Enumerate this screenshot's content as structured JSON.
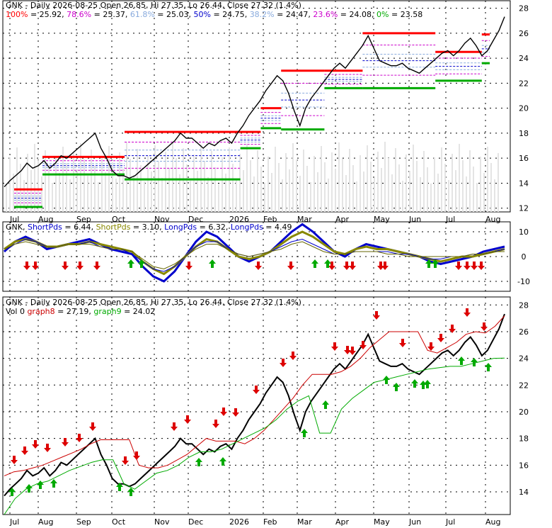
{
  "panel1": {
    "title": "GNK - Daily 2026-08-25 Open 26.85, Hi 27.35, Lo 26.44, Close 27.32 (1.4%)",
    "fib_levels": [
      {
        "label": "100%",
        "value": "25.92",
        "color": "#ff0000"
      },
      {
        "label": "78.6%",
        "value": "25.37",
        "color": "#cc00cc"
      },
      {
        "label": "61.8%",
        "value": "25.03",
        "color": "#88aadd"
      },
      {
        "label": "50%",
        "value": "24.75",
        "color": "#0000cc"
      },
      {
        "label": "38.2%",
        "value": "24.47",
        "color": "#88aadd"
      },
      {
        "label": "23.6%",
        "value": "24.08",
        "color": "#cc00cc"
      },
      {
        "label": "0%",
        "value": "23.58",
        "color": "#00aa00"
      }
    ]
  },
  "panel2": {
    "legend": [
      {
        "label": "GNK",
        "value": "",
        "color": "#000000"
      },
      {
        "label": "ShortPds",
        "value": "6.44",
        "color": "#0000cc"
      },
      {
        "label": "ShortPds",
        "value": "3.10",
        "color": "#888800"
      },
      {
        "label": "LongPds",
        "value": "6.32",
        "color": "#0000cc"
      },
      {
        "label": "LongPds",
        "value": "4.49",
        "color": "#0000cc"
      }
    ]
  },
  "panel3": {
    "title": "GNK - Daily 2026-08-25 Open 26.85, Hi 27.35, Lo 26.44, Close 27.32 (1.4%)",
    "legend": [
      {
        "label": "Vol 0",
        "value": "",
        "color": "#000000"
      },
      {
        "label": "graph8",
        "value": "27.19",
        "color": "#cc0000"
      },
      {
        "label": "graph9",
        "value": "24.02",
        "color": "#00aa00"
      }
    ]
  },
  "chart_data": [
    {
      "type": "line",
      "title": "GNK - Daily 2026-08-25 Open 26.85, Hi 27.35, Lo 26.44, Close 27.32 (1.4%)",
      "x_labels": [
        "Jul",
        "Aug",
        "Sep",
        "Oct",
        "Nov",
        "Dec",
        "2026",
        "Feb",
        "Mar",
        "Apr",
        "May",
        "Jun",
        "Jul",
        "Aug"
      ],
      "y_ticks": [
        12,
        14,
        16,
        18,
        20,
        22,
        24,
        26,
        28
      ],
      "ylim": [
        11.7,
        28.6
      ],
      "close": [
        13.7,
        14.2,
        14.6,
        15.0,
        15.6,
        15.2,
        15.4,
        15.8,
        15.2,
        15.6,
        16.2,
        16.0,
        16.4,
        16.8,
        17.2,
        17.6,
        18.0,
        16.8,
        16.0,
        15.0,
        14.6,
        14.6,
        14.4,
        14.6,
        15.0,
        15.4,
        15.8,
        16.2,
        16.6,
        17.0,
        17.4,
        18.0,
        17.6,
        17.6,
        17.2,
        16.8,
        17.2,
        17.0,
        17.4,
        17.6,
        17.2,
        18.0,
        18.6,
        19.4,
        20.0,
        20.6,
        21.4,
        22.0,
        22.6,
        22.2,
        21.2,
        19.8,
        18.6,
        20.0,
        20.8,
        21.4,
        22.0,
        22.6,
        23.2,
        23.6,
        23.2,
        23.8,
        24.4,
        25.0,
        25.8,
        24.8,
        23.8,
        23.6,
        23.4,
        23.4,
        23.6,
        23.2,
        23.0,
        22.8,
        23.2,
        23.6,
        24.0,
        24.4,
        24.6,
        24.2,
        24.6,
        25.2,
        25.6,
        25.0,
        24.2,
        24.6,
        25.4,
        26.2,
        27.32
      ],
      "fib_lines": [
        {
          "from": 0,
          "to": 1,
          "high": 13.5,
          "low": 12.1
        },
        {
          "from": 1,
          "to": 3.2,
          "high": 16.1,
          "low": 14.7
        },
        {
          "from": 3.2,
          "to": 6.2,
          "high": 18.1,
          "low": 14.3
        },
        {
          "from": 6.2,
          "to": 6.8,
          "high": 18.1,
          "low": 16.8
        },
        {
          "from": 6.8,
          "to": 7.4,
          "high": 20.0,
          "low": 18.4
        },
        {
          "from": 7.4,
          "to": 8.6,
          "high": 23.0,
          "low": 18.3
        },
        {
          "from": 8.6,
          "to": 9.6,
          "high": 23.0,
          "low": 21.6
        },
        {
          "from": 9.6,
          "to": 11.6,
          "high": 26.0,
          "low": 21.6
        },
        {
          "from": 11.6,
          "to": 12.8,
          "high": 24.5,
          "low": 22.2
        },
        {
          "from": 12.8,
          "to": 13.6,
          "high": 25.9,
          "low": 23.6
        }
      ]
    },
    {
      "type": "line",
      "title": "",
      "y_ticks": [
        -10,
        0,
        10
      ],
      "ylim": [
        -14,
        14
      ],
      "series": [
        {
          "values": [
            2,
            6,
            8,
            6,
            3,
            4,
            5,
            6,
            7,
            5,
            3,
            2,
            1,
            -4,
            -8,
            -10,
            -6,
            0,
            6,
            10,
            8,
            4,
            0,
            -2,
            0,
            2,
            6,
            10,
            13,
            10,
            6,
            2,
            0,
            3,
            5,
            4,
            3,
            2,
            1,
            0,
            -2,
            -3,
            -2,
            -1,
            0,
            2,
            3,
            4
          ]
        },
        {
          "values": [
            3,
            6,
            7,
            6,
            4,
            4,
            5,
            5,
            6,
            5,
            4,
            3,
            2,
            -2,
            -5,
            -7,
            -4,
            0,
            4,
            7,
            6,
            3,
            0,
            -1,
            0,
            2,
            5,
            8,
            10,
            8,
            5,
            2,
            1,
            3,
            4,
            3,
            3,
            2,
            1,
            0,
            -1,
            -2,
            -1,
            0,
            0,
            1,
            2,
            3
          ]
        },
        {
          "values": [
            2,
            5,
            7,
            6,
            4,
            4,
            5,
            5,
            6,
            4,
            3,
            3,
            1,
            -2,
            -5,
            -6,
            -4,
            0,
            4,
            6,
            6,
            3,
            1,
            0,
            1,
            2,
            4,
            6,
            7,
            5,
            3,
            1,
            1,
            2,
            2,
            2,
            2,
            1,
            1,
            0,
            -1,
            -1,
            0,
            0,
            1,
            1,
            2,
            3
          ]
        },
        {
          "values": [
            3,
            5,
            6,
            5,
            4,
            4,
            5,
            5,
            5,
            4,
            3,
            3,
            2,
            -1,
            -4,
            -5,
            -3,
            0,
            3,
            5,
            5,
            3,
            1,
            0,
            1,
            2,
            3,
            5,
            6,
            4,
            2,
            1,
            1,
            2,
            2,
            2,
            1,
            1,
            0,
            0,
            0,
            0,
            0,
            0,
            1,
            1,
            2,
            2
          ]
        }
      ]
    },
    {
      "type": "line",
      "title": "GNK - Daily 2026-08-25 Open 26.85, Hi 27.35, Lo 26.44, Close 27.32 (1.4%)",
      "y_ticks": [
        14,
        16,
        18,
        20,
        22,
        24,
        26,
        28
      ],
      "ylim": [
        12.3,
        28.6
      ],
      "series": [
        {
          "name": "graph8",
          "values": [
            15.2,
            15.5,
            15.6,
            15.8,
            16.0,
            16.3,
            16.6,
            16.9,
            17.2,
            17.6,
            17.9,
            17.9,
            17.9,
            17.9,
            16.0,
            15.8,
            15.8,
            16.0,
            16.4,
            16.8,
            17.4,
            18.0,
            17.8,
            17.8,
            17.8,
            17.6,
            18.0,
            18.6,
            19.4,
            20.2,
            21.0,
            22.0,
            22.8,
            22.8,
            22.8,
            23.0,
            23.4,
            24.0,
            24.8,
            25.4,
            26.0,
            26.0,
            26.0,
            26.0,
            24.6,
            24.4,
            24.8,
            25.2,
            25.8,
            26.0,
            25.9,
            26.4,
            27.19
          ]
        },
        {
          "name": "graph9",
          "values": [
            12.3,
            13.5,
            14.2,
            14.6,
            14.8,
            15.2,
            15.6,
            15.9,
            16.2,
            16.4,
            16.4,
            14.6,
            14.2,
            14.8,
            15.4,
            15.6,
            16.0,
            16.6,
            17.0,
            17.0,
            17.2,
            17.6,
            18.0,
            18.4,
            18.8,
            19.4,
            20.2,
            20.8,
            21.2,
            18.4,
            18.4,
            20.2,
            21.0,
            21.6,
            22.2,
            22.4,
            22.6,
            22.8,
            23.0,
            23.2,
            23.3,
            23.4,
            23.4,
            23.6,
            23.8,
            24.0,
            24.02
          ]
        }
      ]
    }
  ]
}
